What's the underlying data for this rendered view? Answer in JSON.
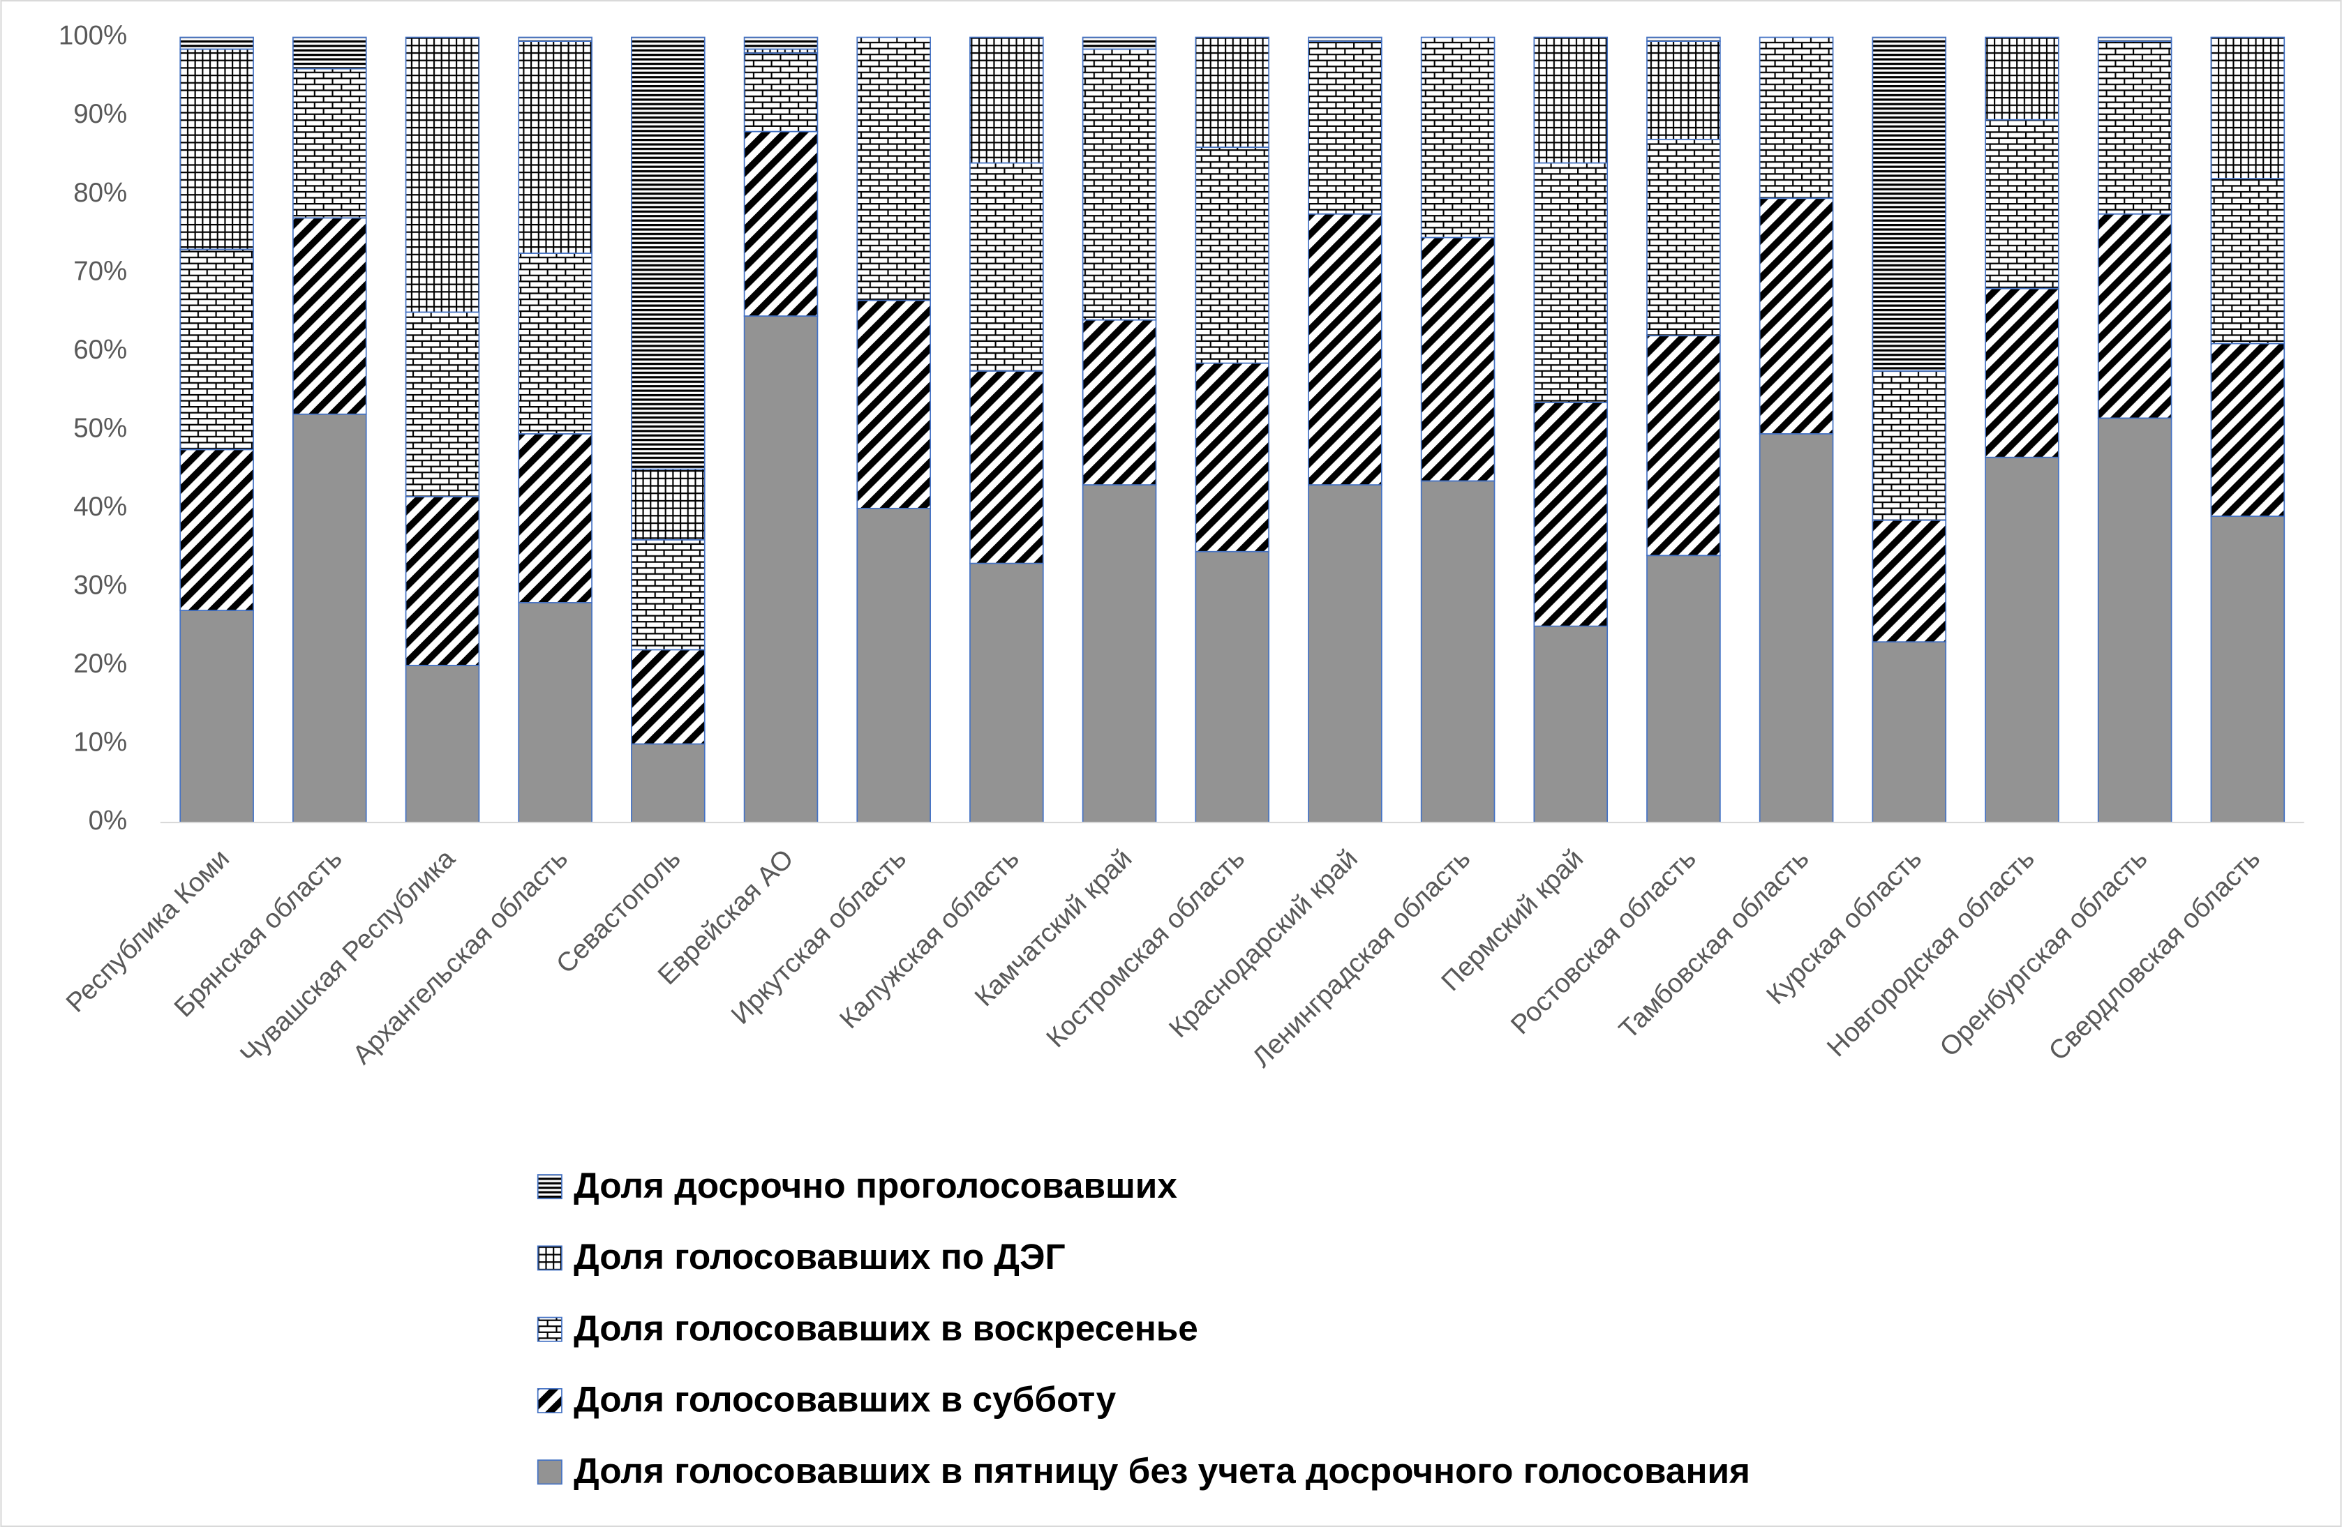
{
  "chart_data": {
    "type": "stacked_bar",
    "categories": [
      "Республика Коми",
      "Брянская область",
      "Чувашская Республика",
      "Архангельская область",
      "Севастополь",
      "Еврейская АО",
      "Иркутская область",
      "Калужская область",
      "Камчатский край",
      "Костромская область",
      "Краснодарский край",
      "Ленинградская область",
      "Пермский край",
      "Ростовская область",
      "Тамбовская область",
      "Курская область",
      "Новгородская область",
      "Оренбургская область",
      "Свердловская область"
    ],
    "series": [
      {
        "name": "Доля голосовавших в пятницу без учета досрочного голосования",
        "color": "#939393",
        "values": [
          27,
          52,
          20,
          28,
          10,
          64.5,
          40,
          33,
          43,
          34.5,
          43,
          43.5,
          25,
          34,
          49.5,
          23,
          46.5,
          51.5,
          39
        ]
      },
      {
        "name": "Доля голосовавших в субботу",
        "color": "#000000",
        "values": [
          20.5,
          25,
          21.5,
          21.5,
          12,
          23.5,
          26.5,
          24.5,
          21,
          24,
          34.5,
          31,
          28.5,
          28,
          30,
          15.5,
          21.5,
          26,
          22
        ]
      },
      {
        "name": "Доля голосовавших в воскресенье",
        "color": "#000000",
        "values": [
          25.5,
          19,
          23.5,
          23,
          14,
          10,
          33.5,
          26.5,
          34.5,
          27.5,
          22,
          25.5,
          30.5,
          25,
          20.5,
          19,
          21.5,
          22,
          21
        ]
      },
      {
        "name": "Доля голосовавших по ДЭГ",
        "color": "#000000",
        "values": [
          25.5,
          0,
          35,
          27,
          9,
          0.5,
          0,
          16,
          0,
          14,
          0,
          0,
          16,
          12.5,
          0,
          0,
          10.5,
          0,
          18
        ]
      },
      {
        "name": "Доля досрочно проголосовавших",
        "color": "#000000",
        "values": [
          1.5,
          4,
          0,
          0.5,
          55,
          1.5,
          0,
          0,
          1.5,
          0,
          0.5,
          0,
          0,
          0.5,
          0,
          42.5,
          0,
          0.5,
          0
        ]
      }
    ],
    "ylim": [
      0,
      100
    ],
    "yticks": [
      {
        "value": 0,
        "label": "0%"
      },
      {
        "value": 10,
        "label": "10%"
      },
      {
        "value": 20,
        "label": "20%"
      },
      {
        "value": 30,
        "label": "30%"
      },
      {
        "value": 40,
        "label": "40%"
      },
      {
        "value": 50,
        "label": "50%"
      },
      {
        "value": 60,
        "label": "60%"
      },
      {
        "value": 70,
        "label": "70%"
      },
      {
        "value": 80,
        "label": "80%"
      },
      {
        "value": 90,
        "label": "90%"
      },
      {
        "value": 100,
        "label": "100%"
      }
    ],
    "legend": "bottom"
  }
}
